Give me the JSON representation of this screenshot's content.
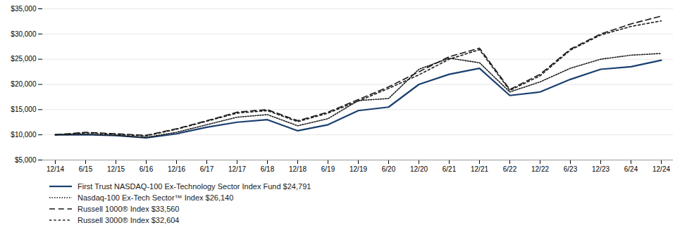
{
  "chart_data": {
    "type": "line",
    "categories": [
      "12/14",
      "6/15",
      "12/15",
      "6/16",
      "12/16",
      "6/17",
      "12/17",
      "6/18",
      "12/18",
      "6/19",
      "12/19",
      "6/20",
      "12/20",
      "6/21",
      "12/21",
      "6/22",
      "12/22",
      "6/23",
      "12/23",
      "6/24",
      "12/24"
    ],
    "series": [
      {
        "name": "First Trust NASDAQ-100 Ex-Technology Sector Index Fund $24,791",
        "color": "#1a3f6f",
        "line_style": "solid",
        "values": [
          10000,
          10050,
          9850,
          9400,
          10200,
          11500,
          12500,
          13000,
          10800,
          12000,
          14800,
          15500,
          20000,
          22000,
          23200,
          17800,
          18500,
          21000,
          23000,
          23500,
          24791
        ]
      },
      {
        "name": "Nasdaq-100 Ex-Tech Sector™ Index $26,140",
        "color": "#1a1a1a",
        "line_style": "dotted",
        "values": [
          10000,
          10100,
          9900,
          9500,
          10500,
          12000,
          13500,
          14000,
          11800,
          13200,
          16800,
          17200,
          23000,
          25200,
          24300,
          18500,
          20500,
          23200,
          25000,
          25800,
          26140
        ]
      },
      {
        "name": "Russell 1000® Index $33,560",
        "color": "#1a1a1a",
        "line_style": "dashed",
        "values": [
          10000,
          10500,
          10200,
          9900,
          11200,
          12800,
          14500,
          15000,
          12800,
          14500,
          17000,
          19500,
          22500,
          25500,
          27200,
          19000,
          22000,
          27000,
          30000,
          32000,
          33560
        ]
      },
      {
        "name": "Russell 3000® Index $32,604",
        "color": "#1a1a1a",
        "line_style": "loosely_dotted",
        "values": [
          10000,
          10400,
          10100,
          9800,
          11100,
          12700,
          14300,
          14800,
          12600,
          14300,
          16700,
          19200,
          21900,
          25000,
          26900,
          18800,
          21700,
          26800,
          29800,
          31500,
          32604
        ]
      }
    ],
    "ylim": [
      5000,
      35000
    ],
    "yticks": [
      {
        "value": 5000,
        "label": "$5,000"
      },
      {
        "value": 10000,
        "label": "$10,000"
      },
      {
        "value": 15000,
        "label": "$15,000"
      },
      {
        "value": 20000,
        "label": "$20,000"
      },
      {
        "value": 25000,
        "label": "$25,000"
      },
      {
        "value": 30000,
        "label": "$30,000"
      },
      {
        "value": 35000,
        "label": "$35,000"
      }
    ],
    "grid": true,
    "legend": "bottom"
  }
}
